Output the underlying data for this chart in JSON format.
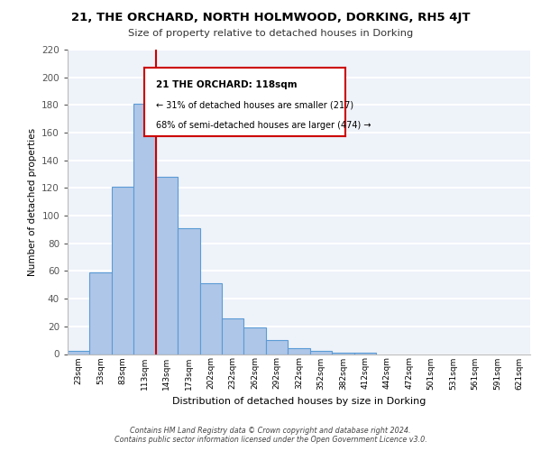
{
  "title": "21, THE ORCHARD, NORTH HOLMWOOD, DORKING, RH5 4JT",
  "subtitle": "Size of property relative to detached houses in Dorking",
  "xlabel": "Distribution of detached houses by size in Dorking",
  "ylabel": "Number of detached properties",
  "bar_values": [
    2,
    59,
    121,
    181,
    128,
    91,
    51,
    26,
    19,
    10,
    4,
    2,
    1,
    1,
    0,
    0,
    0,
    0,
    0,
    0,
    0
  ],
  "bar_labels": [
    "23sqm",
    "53sqm",
    "83sqm",
    "113sqm",
    "143sqm",
    "173sqm",
    "202sqm",
    "232sqm",
    "262sqm",
    "292sqm",
    "322sqm",
    "352sqm",
    "382sqm",
    "412sqm",
    "442sqm",
    "472sqm",
    "501sqm",
    "531sqm",
    "561sqm",
    "591sqm",
    "621sqm"
  ],
  "bar_color": "#aec6e8",
  "bar_edge_color": "#5b9bd5",
  "vline_x": 3.5,
  "vline_color": "#cc0000",
  "ylim": [
    0,
    220
  ],
  "yticks": [
    0,
    20,
    40,
    60,
    80,
    100,
    120,
    140,
    160,
    180,
    200,
    220
  ],
  "footnote": "Contains HM Land Registry data © Crown copyright and database right 2024.\nContains public sector information licensed under the Open Government Licence v3.0.",
  "background_color": "#eef2f9",
  "grid_color": "#ffffff",
  "fig_background": "#ffffff",
  "ann_line1": "21 THE ORCHARD: 118sqm",
  "ann_line2": "← 31% of detached houses are smaller (217)",
  "ann_line3": "68% of semi-detached houses are larger (474) →",
  "ann_box_color": "#cc0000"
}
